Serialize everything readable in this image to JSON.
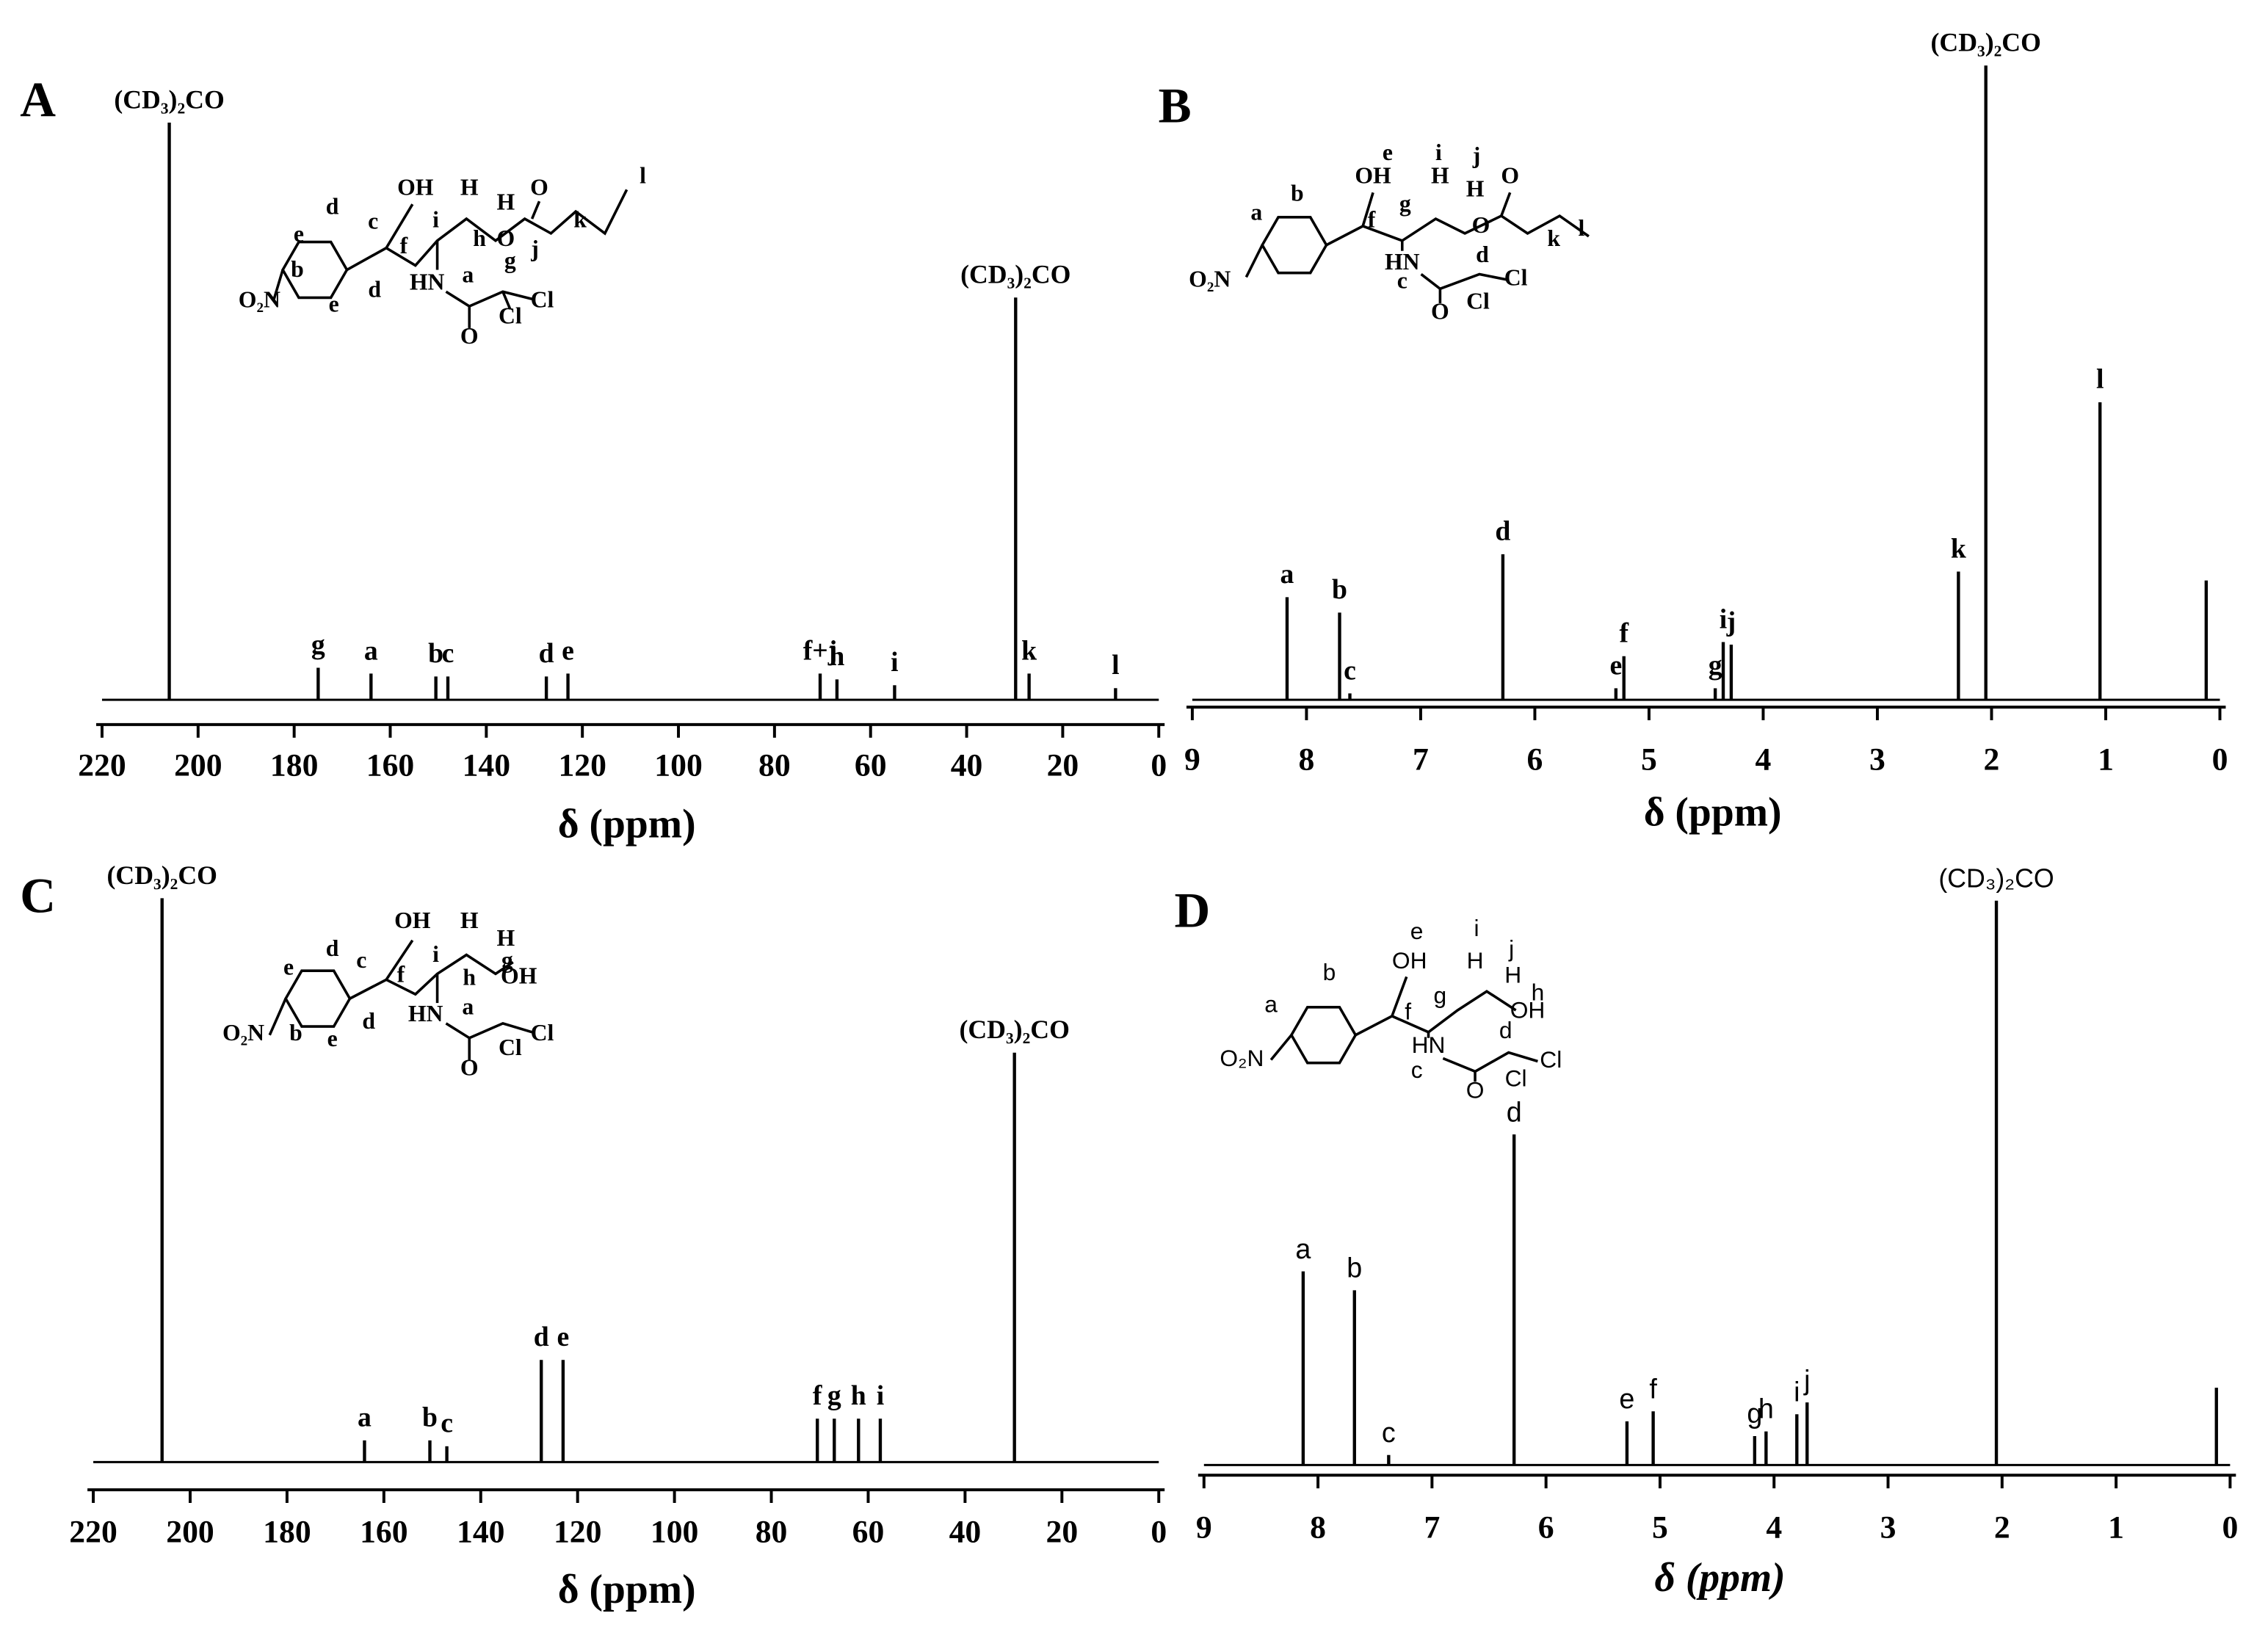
{
  "chart_data": [
    {
      "type": "spectrum",
      "panel": "A",
      "xlabel": "δ (ppm)",
      "xlim": [
        220,
        0
      ],
      "xticks": [
        220,
        200,
        180,
        160,
        140,
        120,
        100,
        80,
        60,
        40,
        20,
        0
      ],
      "ylim": [
        0,
        100
      ],
      "color": "#000000",
      "x": [
        206,
        175,
        164,
        150.5,
        148,
        127.5,
        123,
        70.5,
        67,
        55,
        29.8,
        27,
        9
      ],
      "values": [
        99,
        5.5,
        4.5,
        4,
        4,
        4,
        4.5,
        4.5,
        3.5,
        2.5,
        69,
        4.5,
        2
      ],
      "peak_labels": [
        "(CD₃)₂CO",
        "g",
        "a",
        "b",
        "c",
        "d",
        "e",
        "f+j",
        "h",
        "i",
        "(CD₃)₂CO",
        "k",
        "l"
      ],
      "structure": [
        "OH",
        "H",
        "H",
        "O",
        "l",
        "d",
        "c",
        "i",
        "h",
        "O",
        "j",
        "k",
        "e",
        "b",
        "f",
        "HN",
        "a",
        "g",
        "e",
        "d",
        "Cl",
        "Cl",
        "O",
        "O₂N"
      ]
    },
    {
      "type": "spectrum",
      "panel": "B",
      "xlabel": "δ (ppm)",
      "xlim": [
        9,
        0
      ],
      "xticks": [
        9,
        8,
        7,
        6,
        5,
        4,
        3,
        2,
        1,
        0
      ],
      "ylim": [
        0,
        100
      ],
      "color": "#000000",
      "x": [
        8.17,
        7.71,
        7.62,
        6.28,
        5.29,
        5.22,
        4.42,
        4.35,
        4.28,
        2.29,
        2.05,
        1.05,
        0.12
      ],
      "values": [
        16,
        13.6,
        1,
        22.7,
        1.8,
        6.8,
        1.8,
        9,
        8.6,
        20,
        98.9,
        46.4,
        18.6
      ],
      "peak_labels": [
        "a",
        "b",
        "c",
        "d",
        "e",
        "f",
        "g",
        "i",
        "j",
        "k",
        "(CD₃)₂CO",
        "l",
        null
      ],
      "structure": [
        "e",
        "OH",
        "i",
        "j",
        "H",
        "H",
        "O",
        "a",
        "b",
        "f",
        "g",
        "O",
        "k",
        "l",
        "HN",
        "d",
        "Cl",
        "O₂N",
        "c",
        "O",
        "Cl"
      ]
    },
    {
      "type": "spectrum",
      "panel": "C",
      "xlabel": "δ (ppm)",
      "xlim": [
        220,
        0
      ],
      "xticks": [
        220,
        200,
        180,
        160,
        140,
        120,
        100,
        80,
        60,
        40,
        20,
        0
      ],
      "ylim": [
        0,
        100
      ],
      "color": "#000000",
      "x": [
        205.8,
        164,
        150.5,
        147,
        127.5,
        123,
        70.5,
        67,
        62,
        57.5,
        29.8
      ],
      "values": [
        96,
        3.7,
        3.7,
        2.7,
        17.4,
        17.4,
        7.4,
        7.4,
        7.4,
        7.4,
        69.7
      ],
      "peak_labels": [
        "(CD₃)₂CO",
        "a",
        "b",
        "c",
        "d",
        "e",
        "f",
        "g",
        "h",
        "i",
        "(CD₃)₂CO"
      ],
      "structure": [
        "OH",
        "H",
        "H",
        "d",
        "c",
        "i",
        "OH",
        "g",
        "e",
        "f",
        "h",
        "b",
        "HN",
        "a",
        "Cl",
        "e",
        "d",
        "Cl",
        "O",
        "O₂N"
      ]
    },
    {
      "type": "spectrum",
      "panel": "D",
      "xlabel": "δ (ppm)",
      "xlim": [
        9,
        0
      ],
      "xticks": [
        9,
        8,
        7,
        6,
        5,
        4,
        3,
        2,
        1,
        0
      ],
      "ylim": [
        0,
        100
      ],
      "color": "#000000",
      "x": [
        8.13,
        7.68,
        7.38,
        6.28,
        5.29,
        5.06,
        4.17,
        4.07,
        3.8,
        3.71,
        2.05,
        0.12
      ],
      "values": [
        32.8,
        29.6,
        1.7,
        56,
        7.4,
        9.1,
        4.9,
        5.7,
        8.6,
        10.6,
        95.6,
        13.1
      ],
      "peak_labels": [
        "a",
        "b",
        "c",
        "d",
        "e",
        "f",
        "g",
        "h",
        "i",
        "j",
        "(CD₃)₂CO",
        null
      ],
      "structure": [
        "e",
        "i",
        "j",
        "b",
        "OH",
        "H",
        "H",
        "h",
        "a",
        "f",
        "g",
        "OH",
        "d",
        "HN",
        "Cl",
        "O₂N",
        "c",
        "O",
        "Cl"
      ]
    }
  ]
}
